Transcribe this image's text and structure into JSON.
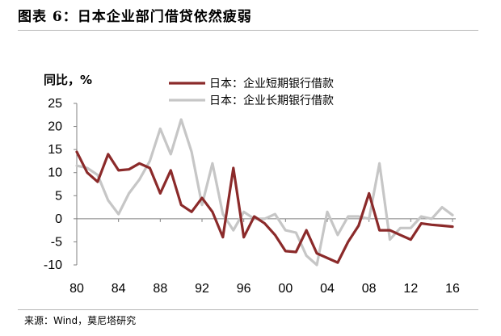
{
  "header": {
    "title": "图表 6：日本企业部门借贷依然疲弱"
  },
  "footer": {
    "source": "来源：Wind，莫尼塔研究"
  },
  "chart_data": {
    "type": "line",
    "title": "图表 6：日本企业部门借贷依然疲弱",
    "ylabel": "同比，%",
    "xlabel": "",
    "x": [
      1980,
      1981,
      1982,
      1983,
      1984,
      1985,
      1986,
      1987,
      1988,
      1989,
      1990,
      1991,
      1992,
      1993,
      1994,
      1995,
      1996,
      1997,
      1998,
      1999,
      2000,
      2001,
      2002,
      2003,
      2004,
      2005,
      2006,
      2007,
      2008,
      2009,
      2010,
      2011,
      2012,
      2013,
      2014,
      2015,
      2016
    ],
    "xticks": [
      "80",
      "84",
      "88",
      "92",
      "96",
      "00",
      "04",
      "08",
      "12",
      "16"
    ],
    "xtick_values": [
      1980,
      1984,
      1988,
      1992,
      1996,
      2000,
      2004,
      2008,
      2012,
      2016
    ],
    "ylim": [
      -10,
      25
    ],
    "yticks": [
      -10,
      -5,
      0,
      5,
      10,
      15,
      20,
      25
    ],
    "grid": false,
    "legend_position": "top-right",
    "series": [
      {
        "name": "日本：企业短期银行借款",
        "color": "#8b2a2a",
        "values": [
          14.5,
          10,
          8,
          14,
          10.5,
          10.7,
          12,
          11,
          5.5,
          10.5,
          3,
          1.5,
          4.5,
          1.5,
          -4,
          11,
          -4,
          0.5,
          -1,
          -3.5,
          -7,
          -7.2,
          -2.5,
          -7.5,
          -8.5,
          -9.5,
          -5,
          -1.5,
          5.5,
          -2.5,
          -2.5,
          -3.5,
          -4.5,
          -1,
          -1.3,
          -1.5,
          -1.7
        ]
      },
      {
        "name": "日本：企业长期银行借款",
        "color": "#c6c6c6",
        "values": [
          11.5,
          11,
          9.5,
          4,
          1,
          5.5,
          8.5,
          12.5,
          19.5,
          14,
          21.5,
          14.5,
          3,
          12,
          1,
          -2.5,
          1.5,
          0,
          0,
          1,
          -2.5,
          -3,
          -8,
          -10,
          1.5,
          -3.5,
          0.5,
          0.5,
          0,
          12,
          -4.5,
          -2,
          -2,
          0.5,
          0,
          2.5,
          0.8
        ]
      }
    ]
  }
}
